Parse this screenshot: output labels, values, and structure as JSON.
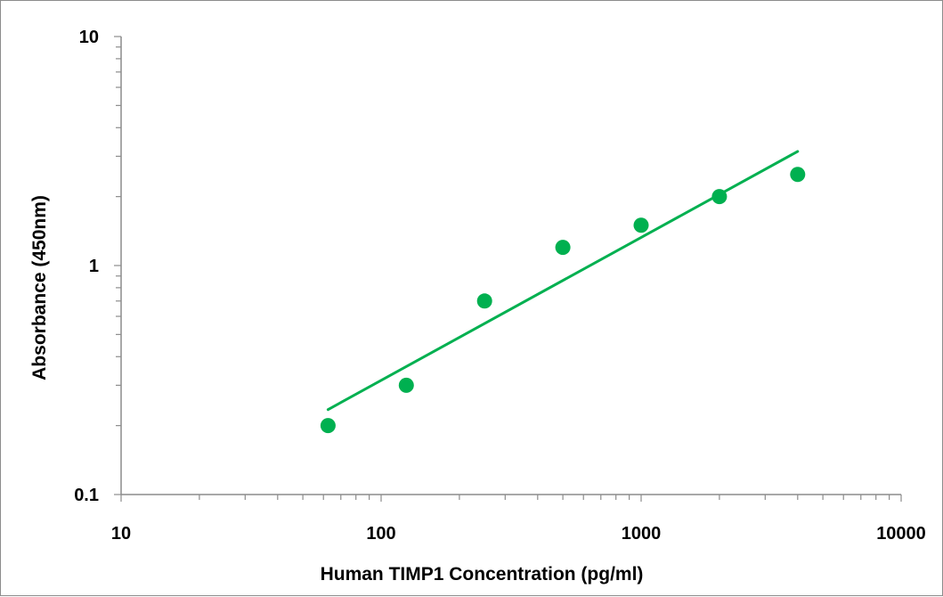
{
  "chart_data": {
    "type": "scatter",
    "title": "",
    "xlabel": "Human TIMP1  Concentration (pg/ml)",
    "ylabel": "Absorbance (450nm)",
    "xscale": "log",
    "yscale": "log",
    "xlim": [
      10,
      10000
    ],
    "ylim": [
      0.1,
      10
    ],
    "x_ticks": [
      10,
      100,
      1000,
      10000
    ],
    "x_tick_labels": [
      "10",
      "100",
      "1000",
      "10000"
    ],
    "y_ticks": [
      0.1,
      1,
      10
    ],
    "y_tick_labels": [
      "0.1",
      "1",
      "10"
    ],
    "grid": false,
    "legend": "none",
    "series": [
      {
        "x": [
          62.5,
          125,
          250,
          500,
          1000,
          2000,
          4000
        ],
        "y": [
          0.2,
          0.3,
          0.7,
          1.2,
          1.5,
          2.0,
          2.5
        ],
        "color": "#00b050",
        "marker": "circle"
      }
    ],
    "trendline": {
      "type": "power",
      "x": [
        62.5,
        4000
      ],
      "y": [
        0.235,
        3.15
      ],
      "color": "#00b050"
    }
  }
}
